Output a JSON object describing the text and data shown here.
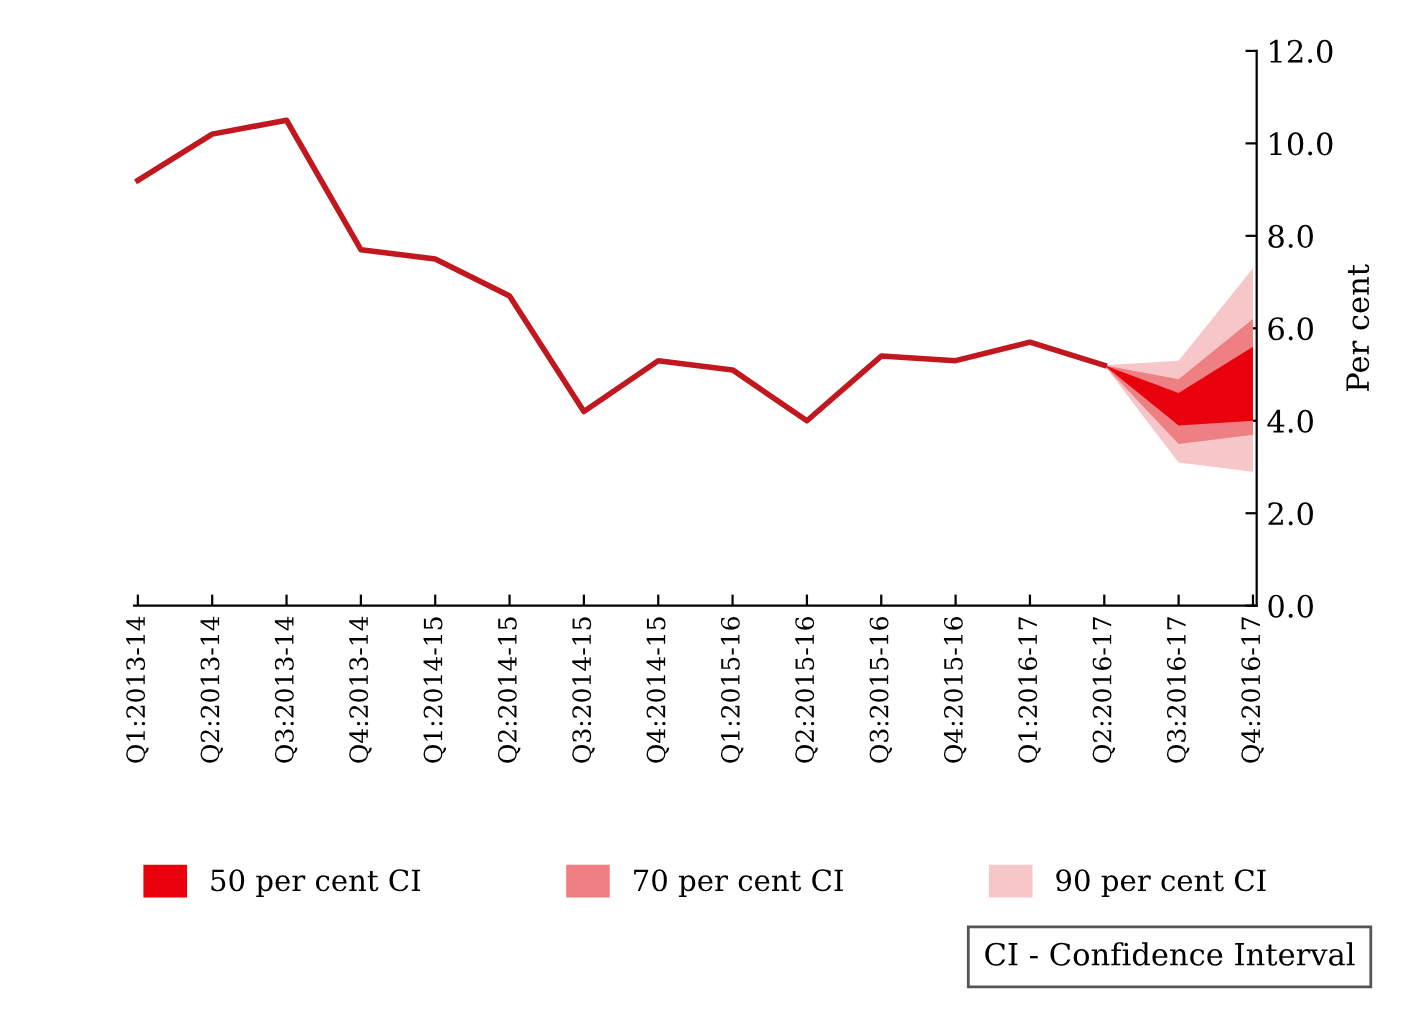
{
  "chart_data": {
    "type": "line",
    "ylabel": "Per cent",
    "categories": [
      "Q1:2013-14",
      "Q2:2013-14",
      "Q3:2013-14",
      "Q4:2013-14",
      "Q1:2014-15",
      "Q2:2014-15",
      "Q3:2014-15",
      "Q4:2014-15",
      "Q1:2015-16",
      "Q2:2015-16",
      "Q3:2015-16",
      "Q4:2015-16",
      "Q1:2016-17",
      "Q2:2016-17",
      "Q3:2016-17",
      "Q4:2016-17"
    ],
    "series": [
      {
        "color": "#c0181e",
        "values": [
          9.2,
          10.2,
          10.5,
          7.7,
          7.5,
          6.7,
          4.2,
          5.3,
          5.1,
          4.0,
          5.4,
          5.3,
          5.7,
          5.2,
          null,
          null
        ]
      },
      {
        "type": "area",
        "name": "90 per cent CI",
        "color": "#f7c6c8",
        "values": [
          null,
          null,
          null,
          null,
          null,
          null,
          null,
          null,
          null,
          null,
          null,
          null,
          null,
          null,
          null,
          null
        ],
        "lower": [
          null,
          null,
          null,
          null,
          null,
          null,
          null,
          null,
          null,
          null,
          null,
          null,
          null,
          5.2,
          3.1,
          2.9
        ],
        "upper": [
          null,
          null,
          null,
          null,
          null,
          null,
          null,
          null,
          null,
          null,
          null,
          null,
          null,
          5.2,
          5.3,
          7.3
        ]
      },
      {
        "type": "area",
        "name": "70 per cent CI",
        "color": "#ee7f83",
        "values": [
          null,
          null,
          null,
          null,
          null,
          null,
          null,
          null,
          null,
          null,
          null,
          null,
          null,
          null,
          null,
          null
        ],
        "lower": [
          null,
          null,
          null,
          null,
          null,
          null,
          null,
          null,
          null,
          null,
          null,
          null,
          null,
          5.2,
          3.5,
          3.7
        ],
        "upper": [
          null,
          null,
          null,
          null,
          null,
          null,
          null,
          null,
          null,
          null,
          null,
          null,
          null,
          5.2,
          4.9,
          6.2
        ]
      },
      {
        "type": "area",
        "name": "50 per cent CI",
        "color": "#e8000d",
        "values": [
          null,
          null,
          null,
          null,
          null,
          null,
          null,
          null,
          null,
          null,
          null,
          null,
          null,
          null,
          null,
          null
        ],
        "lower": [
          null,
          null,
          null,
          null,
          null,
          null,
          null,
          null,
          null,
          null,
          null,
          null,
          null,
          5.2,
          3.9,
          4.0
        ],
        "upper": [
          null,
          null,
          null,
          null,
          null,
          null,
          null,
          null,
          null,
          null,
          null,
          null,
          null,
          5.2,
          4.6,
          5.6
        ]
      }
    ],
    "ylim": [
      0,
      12
    ],
    "yticks": [
      {
        "value": 0,
        "label": "0.0"
      },
      {
        "value": 2,
        "label": "2.0"
      },
      {
        "value": 4,
        "label": "4.0"
      },
      {
        "value": 6,
        "label": "6.0"
      },
      {
        "value": 8,
        "label": "8.0"
      },
      {
        "value": 10,
        "label": "10.0"
      },
      {
        "value": 12,
        "label": "12.0"
      }
    ],
    "grid": false,
    "legend": "bottom",
    "marker": "none",
    "line_style": "solid",
    "annotations": [
      "CI - Confidence Interval"
    ]
  }
}
